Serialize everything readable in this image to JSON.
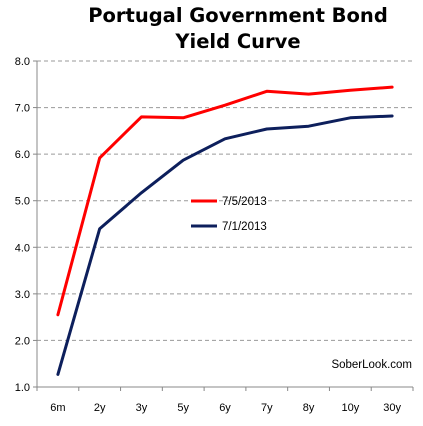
{
  "chart_data": {
    "type": "line",
    "title_line1": "Portugal Government Bond",
    "title_line2": "Yield Curve",
    "xlabel": "",
    "ylabel": "",
    "categories": [
      "6m",
      "2y",
      "3y",
      "5y",
      "6y",
      "7y",
      "8y",
      "10y",
      "30y"
    ],
    "ylim": [
      1.0,
      8.0
    ],
    "yticks": [
      "1.0",
      "2.0",
      "3.0",
      "4.0",
      "5.0",
      "6.0",
      "7.0",
      "8.0"
    ],
    "grid": "horizontal dashed",
    "legend_position": "center-right",
    "series": [
      {
        "name": "7/5/2013",
        "color": "#ff0000",
        "values": [
          2.55,
          5.92,
          6.8,
          6.78,
          7.05,
          7.35,
          7.29,
          7.37,
          7.44
        ]
      },
      {
        "name": "7/1/2013",
        "color": "#0d1f5c",
        "values": [
          1.27,
          4.4,
          5.17,
          5.87,
          6.33,
          6.54,
          6.6,
          6.78,
          6.82
        ]
      }
    ],
    "watermark": "SoberLook.com"
  }
}
